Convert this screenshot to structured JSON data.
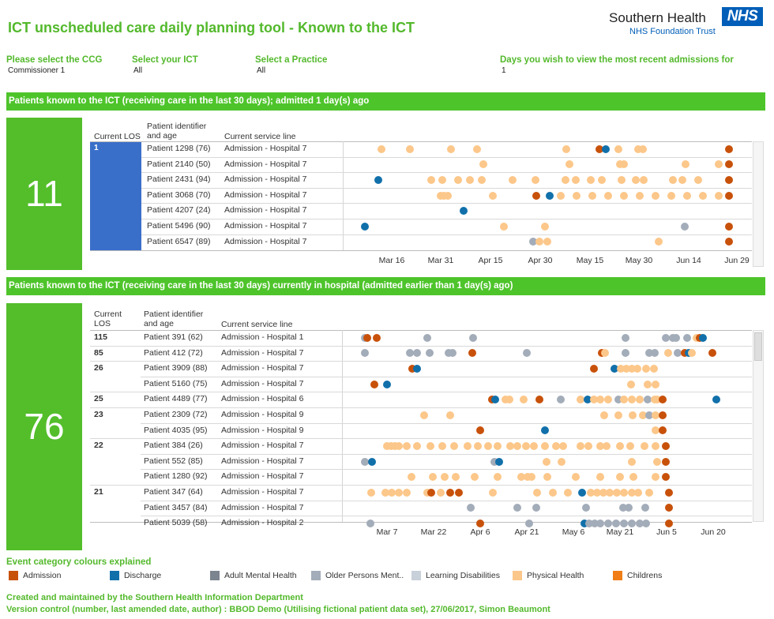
{
  "header": {
    "title": "ICT unscheduled care daily planning tool - Known to the ICT",
    "org_name": "Southern Health",
    "nhs_logo": "NHS",
    "org_sub": "NHS Foundation Trust"
  },
  "filters": {
    "ccg": {
      "label": "Please select the CCG",
      "value": "Commissioner 1"
    },
    "ict": {
      "label": "Select your ICT",
      "value": "All"
    },
    "practice": {
      "label": "Select a Practice",
      "value": "All"
    },
    "days": {
      "label": "Days you wish to view the most recent admissions for",
      "value": "1"
    }
  },
  "section1": {
    "banner": "Patients known to the ICT (receiving care in the last 30 days); admitted 1 day(s) ago",
    "count": "11",
    "col_los": "Current LOS",
    "col_patient": "Patient identifier and age",
    "col_service": "Current service line",
    "los_value": "1",
    "rows": [
      {
        "patient": "Patient 1298 (76)",
        "service": "Admission - Hospital 7"
      },
      {
        "patient": "Patient 2140 (50)",
        "service": "Admission - Hospital 7"
      },
      {
        "patient": "Patient 2431 (94)",
        "service": "Admission - Hospital 7"
      },
      {
        "patient": "Patient 3068 (70)",
        "service": "Admission - Hospital 7"
      },
      {
        "patient": "Patient 4207 (24)",
        "service": "Admission - Hospital 7"
      },
      {
        "patient": "Patient 5496 (90)",
        "service": "Admission - Hospital 7"
      },
      {
        "patient": "Patient 6547 (89)",
        "service": "Admission - Hospital 7"
      }
    ],
    "axis": [
      "Mar 16",
      "Mar 31",
      "Apr 15",
      "Apr 30",
      "May 15",
      "May 30",
      "Jun 14",
      "Jun 29"
    ]
  },
  "section2": {
    "banner": "Patients known to the ICT (receiving care in the last 30 days) currently in hospital (admitted earlier than 1 day(s) ago)",
    "count": "76",
    "col_los": "Current LOS",
    "col_patient": "Patient identifier and age",
    "col_service": "Current service line",
    "rows": [
      {
        "los": "115",
        "patient": "Patient 391 (62)",
        "service": "Admission - Hospital 1"
      },
      {
        "los": "85",
        "patient": "Patient 412 (72)",
        "service": "Admission - Hospital 7"
      },
      {
        "los": "26",
        "patient": "Patient 3909 (88)",
        "service": "Admission - Hospital 7"
      },
      {
        "los": "",
        "patient": "Patient 5160 (75)",
        "service": "Admission - Hospital 7"
      },
      {
        "los": "25",
        "patient": "Patient 4489 (77)",
        "service": "Admission - Hospital 6"
      },
      {
        "los": "23",
        "patient": "Patient 2309 (72)",
        "service": "Admission - Hospital 9"
      },
      {
        "los": "",
        "patient": "Patient 4035 (95)",
        "service": "Admission - Hospital 9"
      },
      {
        "los": "22",
        "patient": "Patient 384 (26)",
        "service": "Admission - Hospital 7"
      },
      {
        "los": "",
        "patient": "Patient 552 (85)",
        "service": "Admission - Hospital 7"
      },
      {
        "los": "",
        "patient": "Patient 1280 (92)",
        "service": "Admission - Hospital 7"
      },
      {
        "los": "21",
        "patient": "Patient 347 (64)",
        "service": "Admission - Hospital 7"
      },
      {
        "los": "",
        "patient": "Patient 3457 (84)",
        "service": "Admission - Hospital 7"
      },
      {
        "los": "",
        "patient": "Patient 5039 (58)",
        "service": "Admission - Hospital 2"
      }
    ],
    "axis": [
      "Mar 7",
      "Mar 22",
      "Apr 6",
      "Apr 21",
      "May 6",
      "May 21",
      "Jun 5",
      "Jun 20"
    ]
  },
  "legend": {
    "title": "Event category colours explained",
    "items": [
      {
        "label": "Admission",
        "color": "#c8510a"
      },
      {
        "label": "Discharge",
        "color": "#1170aa"
      },
      {
        "label": "Adult Mental Health",
        "color": "#7b848f"
      },
      {
        "label": "Older Persons Ment..",
        "color": "#a3acb9"
      },
      {
        "label": "Learning Disabilities",
        "color": "#c8d0d9"
      },
      {
        "label": "Physical Health",
        "color": "#fcc78a"
      },
      {
        "label": "Childrens",
        "color": "#f07d15"
      }
    ]
  },
  "footer": {
    "line1": "Created and maintained by the Southern Health Information Department",
    "line2": "Version control (number, last amended date, author) : BBOD Demo (Utilising fictional patient data set), 27/06/2017, Simon Beaumont"
  },
  "timeline1": [
    [
      [
        "P",
        483
      ],
      [
        "P",
        519
      ],
      [
        "P",
        571
      ],
      [
        "P",
        604
      ],
      [
        "P",
        717
      ],
      [
        "A",
        759
      ],
      [
        "D",
        767
      ],
      [
        "P",
        783
      ],
      [
        "P",
        808
      ],
      [
        "P",
        814
      ],
      [
        "A",
        923
      ]
    ],
    [
      [
        "P",
        612
      ],
      [
        "P",
        721
      ],
      [
        "P",
        785
      ],
      [
        "P",
        790
      ],
      [
        "P",
        868
      ],
      [
        "P",
        910
      ],
      [
        "A",
        923
      ]
    ],
    [
      [
        "D",
        479
      ],
      [
        "P",
        546
      ],
      [
        "P",
        560
      ],
      [
        "P",
        580
      ],
      [
        "P",
        595
      ],
      [
        "P",
        610
      ],
      [
        "P",
        649
      ],
      [
        "P",
        678
      ],
      [
        "P",
        716
      ],
      [
        "P",
        729
      ],
      [
        "P",
        748
      ],
      [
        "P",
        762
      ],
      [
        "P",
        787
      ],
      [
        "P",
        805
      ],
      [
        "P",
        815
      ],
      [
        "P",
        852
      ],
      [
        "P",
        864
      ],
      [
        "P",
        884
      ],
      [
        "A",
        923
      ]
    ],
    [
      [
        "P",
        558
      ],
      [
        "P",
        562
      ],
      [
        "P",
        567
      ],
      [
        "P",
        624
      ],
      [
        "A",
        679
      ],
      [
        "D",
        696
      ],
      [
        "P",
        710
      ],
      [
        "P",
        730
      ],
      [
        "P",
        750
      ],
      [
        "P",
        770
      ],
      [
        "P",
        790
      ],
      [
        "P",
        810
      ],
      [
        "P",
        830
      ],
      [
        "P",
        850
      ],
      [
        "P",
        870
      ],
      [
        "P",
        890
      ],
      [
        "P",
        910
      ],
      [
        "A",
        923
      ]
    ],
    [
      [
        "D",
        587
      ]
    ],
    [
      [
        "D",
        462
      ],
      [
        "P",
        638
      ],
      [
        "P",
        690
      ],
      [
        "O",
        867
      ],
      [
        "A",
        923
      ]
    ],
    [
      [
        "O",
        675
      ],
      [
        "P",
        683
      ],
      [
        "P",
        693
      ],
      [
        "P",
        834
      ],
      [
        "A",
        923
      ]
    ]
  ],
  "timeline2": [
    [
      [
        "O",
        462
      ],
      [
        "A",
        465
      ],
      [
        "A",
        477
      ],
      [
        "O",
        541
      ],
      [
        "O",
        599
      ],
      [
        "O",
        792
      ],
      [
        "O",
        843
      ],
      [
        "O",
        852
      ],
      [
        "O",
        856
      ],
      [
        "O",
        870
      ],
      [
        "P",
        882
      ],
      [
        "A",
        886
      ],
      [
        "D",
        890
      ]
    ],
    [
      [
        "O",
        462
      ],
      [
        "O",
        519
      ],
      [
        "O",
        528
      ],
      [
        "O",
        544
      ],
      [
        "O",
        568
      ],
      [
        "O",
        573
      ],
      [
        "A",
        598
      ],
      [
        "O",
        667
      ],
      [
        "A",
        762
      ],
      [
        "P",
        766
      ],
      [
        "O",
        792
      ],
      [
        "O",
        822
      ],
      [
        "O",
        829
      ],
      [
        "P",
        846
      ],
      [
        "O",
        858
      ],
      [
        "A",
        867
      ],
      [
        "D",
        872
      ],
      [
        "P",
        876
      ],
      [
        "A",
        902
      ]
    ],
    [
      [
        "A",
        522
      ],
      [
        "D",
        528
      ],
      [
        "A",
        752
      ],
      [
        "D",
        778
      ],
      [
        "P",
        786
      ],
      [
        "P",
        793
      ],
      [
        "P",
        800
      ],
      [
        "P",
        807
      ],
      [
        "P",
        818
      ],
      [
        "P",
        828
      ]
    ],
    [
      [
        "A",
        474
      ],
      [
        "D",
        490
      ],
      [
        "P",
        799
      ],
      [
        "P",
        820
      ],
      [
        "P",
        830
      ]
    ],
    [
      [
        "A",
        623
      ],
      [
        "D",
        627
      ],
      [
        "P",
        640
      ],
      [
        "P",
        645
      ],
      [
        "P",
        663
      ],
      [
        "A",
        683
      ],
      [
        "O",
        710
      ],
      [
        "P",
        735
      ],
      [
        "D",
        744
      ],
      [
        "P",
        752
      ],
      [
        "P",
        760
      ],
      [
        "P",
        770
      ],
      [
        "O",
        783
      ],
      [
        "P",
        790
      ],
      [
        "P",
        800
      ],
      [
        "P",
        810
      ],
      [
        "O",
        820
      ],
      [
        "P",
        829
      ],
      [
        "P",
        832
      ],
      [
        "A",
        839
      ],
      [
        "D",
        907
      ]
    ],
    [
      [
        "P",
        537
      ],
      [
        "P",
        570
      ],
      [
        "P",
        765
      ],
      [
        "P",
        783
      ],
      [
        "P",
        801
      ],
      [
        "P",
        814
      ],
      [
        "O",
        822
      ],
      [
        "P",
        830
      ],
      [
        "A",
        839
      ]
    ],
    [
      [
        "A",
        608
      ],
      [
        "D",
        690
      ],
      [
        "P",
        830
      ],
      [
        "A",
        839
      ]
    ],
    [
      [
        "P",
        490
      ],
      [
        "P",
        495
      ],
      [
        "P",
        500
      ],
      [
        "P",
        505
      ],
      [
        "P",
        515
      ],
      [
        "P",
        528
      ],
      [
        "P",
        545
      ],
      [
        "P",
        560
      ],
      [
        "P",
        575
      ],
      [
        "P",
        592
      ],
      [
        "P",
        605
      ],
      [
        "P",
        618
      ],
      [
        "P",
        630
      ],
      [
        "P",
        646
      ],
      [
        "P",
        655
      ],
      [
        "P",
        666
      ],
      [
        "P",
        676
      ],
      [
        "P",
        690
      ],
      [
        "P",
        704
      ],
      [
        "P",
        713
      ],
      [
        "P",
        735
      ],
      [
        "P",
        745
      ],
      [
        "P",
        760
      ],
      [
        "P",
        768
      ],
      [
        "P",
        785
      ],
      [
        "P",
        798
      ],
      [
        "P",
        816
      ],
      [
        "P",
        830
      ],
      [
        "A",
        843
      ]
    ],
    [
      [
        "O",
        462
      ],
      [
        "D",
        471
      ],
      [
        "O",
        626
      ],
      [
        "D",
        632
      ],
      [
        "P",
        692
      ],
      [
        "P",
        711
      ],
      [
        "P",
        800
      ],
      [
        "P",
        832
      ],
      [
        "A",
        843
      ]
    ],
    [
      [
        "P",
        521
      ],
      [
        "P",
        548
      ],
      [
        "P",
        563
      ],
      [
        "P",
        577
      ],
      [
        "P",
        601
      ],
      [
        "P",
        630
      ],
      [
        "P",
        660
      ],
      [
        "P",
        668
      ],
      [
        "P",
        673
      ],
      [
        "P",
        693
      ],
      [
        "P",
        729
      ],
      [
        "P",
        760
      ],
      [
        "P",
        785
      ],
      [
        "P",
        802
      ],
      [
        "P",
        830
      ],
      [
        "A",
        843
      ]
    ],
    [
      [
        "P",
        470
      ],
      [
        "P",
        488
      ],
      [
        "P",
        496
      ],
      [
        "P",
        505
      ],
      [
        "P",
        515
      ],
      [
        "P",
        541
      ],
      [
        "A",
        546
      ],
      [
        "P",
        558
      ],
      [
        "A",
        570
      ],
      [
        "A",
        581
      ],
      [
        "P",
        624
      ],
      [
        "P",
        680
      ],
      [
        "P",
        700
      ],
      [
        "P",
        719
      ],
      [
        "D",
        737
      ],
      [
        "P",
        748
      ],
      [
        "P",
        756
      ],
      [
        "P",
        764
      ],
      [
        "P",
        772
      ],
      [
        "P",
        781
      ],
      [
        "P",
        790
      ],
      [
        "P",
        800
      ],
      [
        "P",
        808
      ],
      [
        "P",
        822
      ],
      [
        "A",
        847
      ]
    ],
    [
      [
        "O",
        596
      ],
      [
        "O",
        655
      ],
      [
        "O",
        679
      ],
      [
        "O",
        742
      ],
      [
        "O",
        789
      ],
      [
        "O",
        796
      ],
      [
        "O",
        817
      ],
      [
        "A",
        847
      ]
    ],
    [
      [
        "O",
        469
      ],
      [
        "A",
        608
      ],
      [
        "O",
        670
      ],
      [
        "D",
        740
      ],
      [
        "O",
        746
      ],
      [
        "O",
        753
      ],
      [
        "O",
        760
      ],
      [
        "O",
        770
      ],
      [
        "O",
        780
      ],
      [
        "O",
        790
      ],
      [
        "O",
        800
      ],
      [
        "O",
        810
      ],
      [
        "O",
        818
      ],
      [
        "A",
        847
      ]
    ]
  ]
}
